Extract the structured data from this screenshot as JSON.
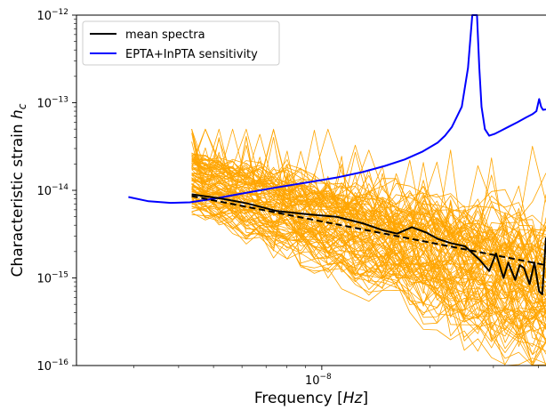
{
  "chart_data": {
    "type": "line",
    "xlabel_text": "Frequency [",
    "xlabel_unit": "Hz",
    "xlabel_close": "]",
    "ylabel_text": "Characteristic strain ",
    "ylabel_symbol": "h",
    "ylabel_sub": "c",
    "x_scale": "log",
    "y_scale": "log",
    "xlim": [
      2.08e-09,
      4.2e-08
    ],
    "ylim": [
      1e-16,
      1e-12
    ],
    "x_ticks": [
      {
        "base": "10",
        "exp": "−8",
        "value": 1e-08
      }
    ],
    "y_ticks": [
      {
        "base": "10",
        "exp": "−16",
        "value": 1e-16
      },
      {
        "base": "10",
        "exp": "−15",
        "value": 1e-15
      },
      {
        "base": "10",
        "exp": "−14",
        "value": 1e-14
      },
      {
        "base": "10",
        "exp": "−13",
        "value": 1e-13
      },
      {
        "base": "10",
        "exp": "−12",
        "value": 1e-12
      }
    ],
    "legend_position": "top-left",
    "colors": {
      "mean": "#000000",
      "sensitivity": "#0000ff",
      "realizations": "#ffa500",
      "fit": "#000000"
    },
    "series": [
      {
        "name": "mean spectra",
        "style": "solid",
        "x": [
          4.35e-09,
          5.3e-09,
          6.2e-09,
          7.5e-09,
          9.3e-09,
          1.1e-08,
          1.3e-08,
          1.48e-08,
          1.62e-08,
          1.78e-08,
          1.95e-08,
          2.1e-08,
          2.28e-08,
          2.5e-08,
          2.75e-08,
          2.92e-08,
          3.05e-08,
          3.2e-08,
          3.3e-08,
          3.45e-08,
          3.55e-08,
          3.65e-08,
          3.78e-08,
          3.9e-08,
          4.02e-08,
          4.1e-08,
          4.2e-08
        ],
        "values": [
          9e-15,
          8e-15,
          7.1e-15,
          5.8e-15,
          5.3e-15,
          5e-15,
          4.2e-15,
          3.5e-15,
          3.2e-15,
          3.8e-15,
          3.3e-15,
          2.8e-15,
          2.5e-15,
          2.3e-15,
          1.6e-15,
          1.2e-15,
          1.9e-15,
          1e-15,
          1.5e-15,
          9.5e-16,
          1.4e-15,
          1.3e-15,
          8.5e-16,
          1.5e-15,
          7e-16,
          6.5e-16,
          2.9e-15
        ]
      },
      {
        "name": "EPTA+InPTA sensitivity",
        "style": "solid",
        "x": [
          2.9e-09,
          3.3e-09,
          3.8e-09,
          4.3e-09,
          5e-09,
          6e-09,
          7.5e-09,
          9e-09,
          1.1e-08,
          1.3e-08,
          1.5e-08,
          1.7e-08,
          1.9e-08,
          2.1e-08,
          2.2e-08,
          2.3e-08,
          2.45e-08,
          2.55e-08,
          2.62e-08,
          2.66e-08,
          2.7e-08,
          2.74e-08,
          2.78e-08,
          2.84e-08,
          2.92e-08,
          3.02e-08,
          3.15e-08,
          3.3e-08,
          3.5e-08,
          3.7e-08,
          3.85e-08,
          3.95e-08,
          4.02e-08,
          4.07e-08,
          4.12e-08,
          4.2e-08
        ],
        "values": [
          8.4e-15,
          7.5e-15,
          7.2e-15,
          7.3e-15,
          8e-15,
          9.2e-15,
          1.08e-14,
          1.22e-14,
          1.4e-14,
          1.62e-14,
          1.9e-14,
          2.25e-14,
          2.75e-14,
          3.5e-14,
          4.2e-14,
          5.3e-14,
          9e-14,
          2.5e-13,
          1.2e-12,
          2e-12,
          1.2e-12,
          2.5e-13,
          9e-14,
          5e-14,
          4.2e-14,
          4.4e-14,
          4.8e-14,
          5.3e-14,
          6e-14,
          6.8e-14,
          7.4e-14,
          8e-14,
          1.1e-13,
          9e-14,
          8.3e-14,
          8.4e-14
        ]
      },
      {
        "name": "",
        "style": "dashed",
        "x": [
          4.35e-09,
          4.2e-08
        ],
        "values": [
          8.6e-15,
          1.4e-15
        ]
      }
    ],
    "realizations": {
      "count": 100,
      "x_start": 4.35e-09,
      "x_end": 4.2e-08,
      "points": 27,
      "start_values": [
        6e-15,
        2.4e-14
      ],
      "end_values": [
        8e-17,
        5e-15
      ],
      "max_value": 5e-14
    }
  },
  "legend": [
    {
      "label": "mean spectra",
      "color": "#000000"
    },
    {
      "label": "EPTA+InPTA sensitivity",
      "color": "#0000ff"
    }
  ]
}
